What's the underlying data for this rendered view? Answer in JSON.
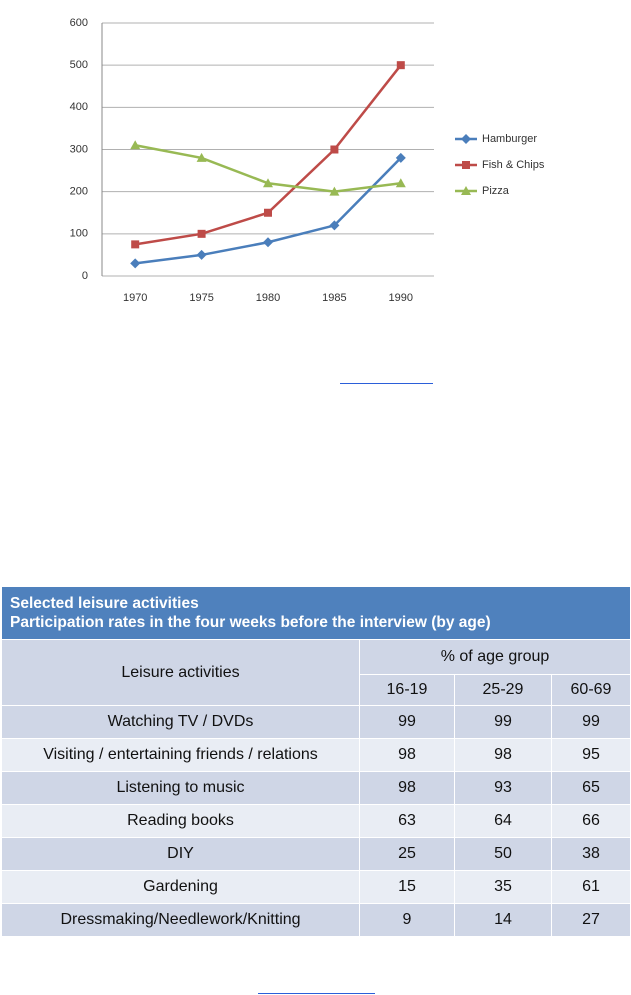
{
  "chart_data": {
    "type": "line",
    "categories": [
      "1970",
      "1975",
      "1980",
      "1985",
      "1990"
    ],
    "series": [
      {
        "name": "Hamburger",
        "color": "#4a7ebb",
        "marker": "diamond",
        "values": [
          30,
          50,
          80,
          120,
          280
        ]
      },
      {
        "name": "Fish & Chips",
        "color": "#be4b48",
        "marker": "square",
        "values": [
          75,
          100,
          150,
          300,
          500
        ]
      },
      {
        "name": "Pizza",
        "color": "#98b954",
        "marker": "triangle",
        "values": [
          310,
          280,
          220,
          200,
          220
        ]
      }
    ],
    "ylim": [
      0,
      600
    ],
    "yticks": [
      0,
      100,
      200,
      300,
      400,
      500,
      600
    ],
    "grid": true,
    "legend": "right"
  },
  "table": {
    "title": [
      "Selected leisure activities",
      "Participation rates in the four weeks before the interview (by age)"
    ],
    "header": {
      "activity": "Leisure activities",
      "group": "% of age group",
      "ages": [
        "16-19",
        "25-29",
        "60-69"
      ]
    },
    "rows": [
      [
        "Watching TV / DVDs",
        99,
        99,
        99
      ],
      [
        "Visiting / entertaining friends / relations",
        98,
        98,
        95
      ],
      [
        "Listening to music",
        98,
        93,
        65
      ],
      [
        "Reading books",
        63,
        64,
        66
      ],
      [
        "DIY",
        25,
        50,
        38
      ],
      [
        "Gardening",
        15,
        35,
        61
      ],
      [
        "Dressmaking/Needlework/Knitting",
        9,
        14,
        27
      ]
    ]
  }
}
